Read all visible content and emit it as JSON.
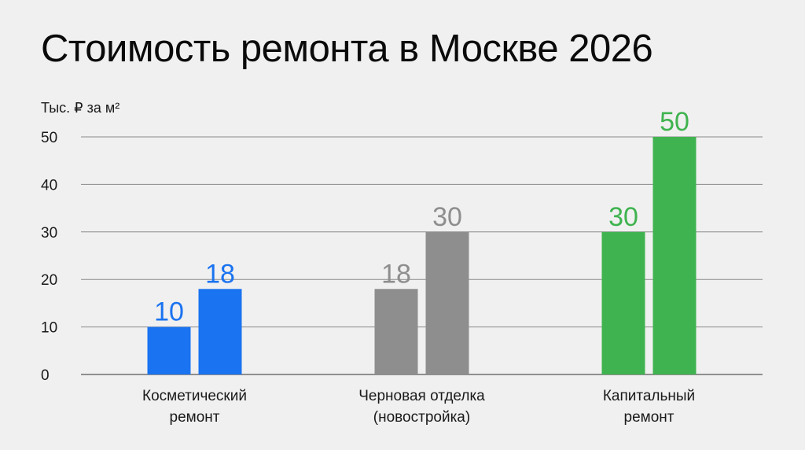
{
  "title": "Стоимость ремонта в Москве 2026",
  "chart_data": {
    "type": "bar",
    "title": "Стоимость ремонта в Москве 2026",
    "ylabel": "Тыс. ₽ за м²",
    "xlabel": "",
    "ylim": [
      0,
      50
    ],
    "yticks": [
      0,
      10,
      20,
      30,
      40,
      50
    ],
    "grid": true,
    "legend": "none",
    "categories": [
      {
        "lines": [
          "Косметический",
          "ремонт"
        ],
        "values": [
          10,
          18
        ],
        "color": "#1a73f0"
      },
      {
        "lines": [
          "Черновая отделка",
          "(новостройка)"
        ],
        "values": [
          18,
          30
        ],
        "color": "#8e8e8e"
      },
      {
        "lines": [
          "Капитальный",
          "ремонт"
        ],
        "values": [
          30,
          50
        ],
        "color": "#3fb34f"
      }
    ]
  }
}
